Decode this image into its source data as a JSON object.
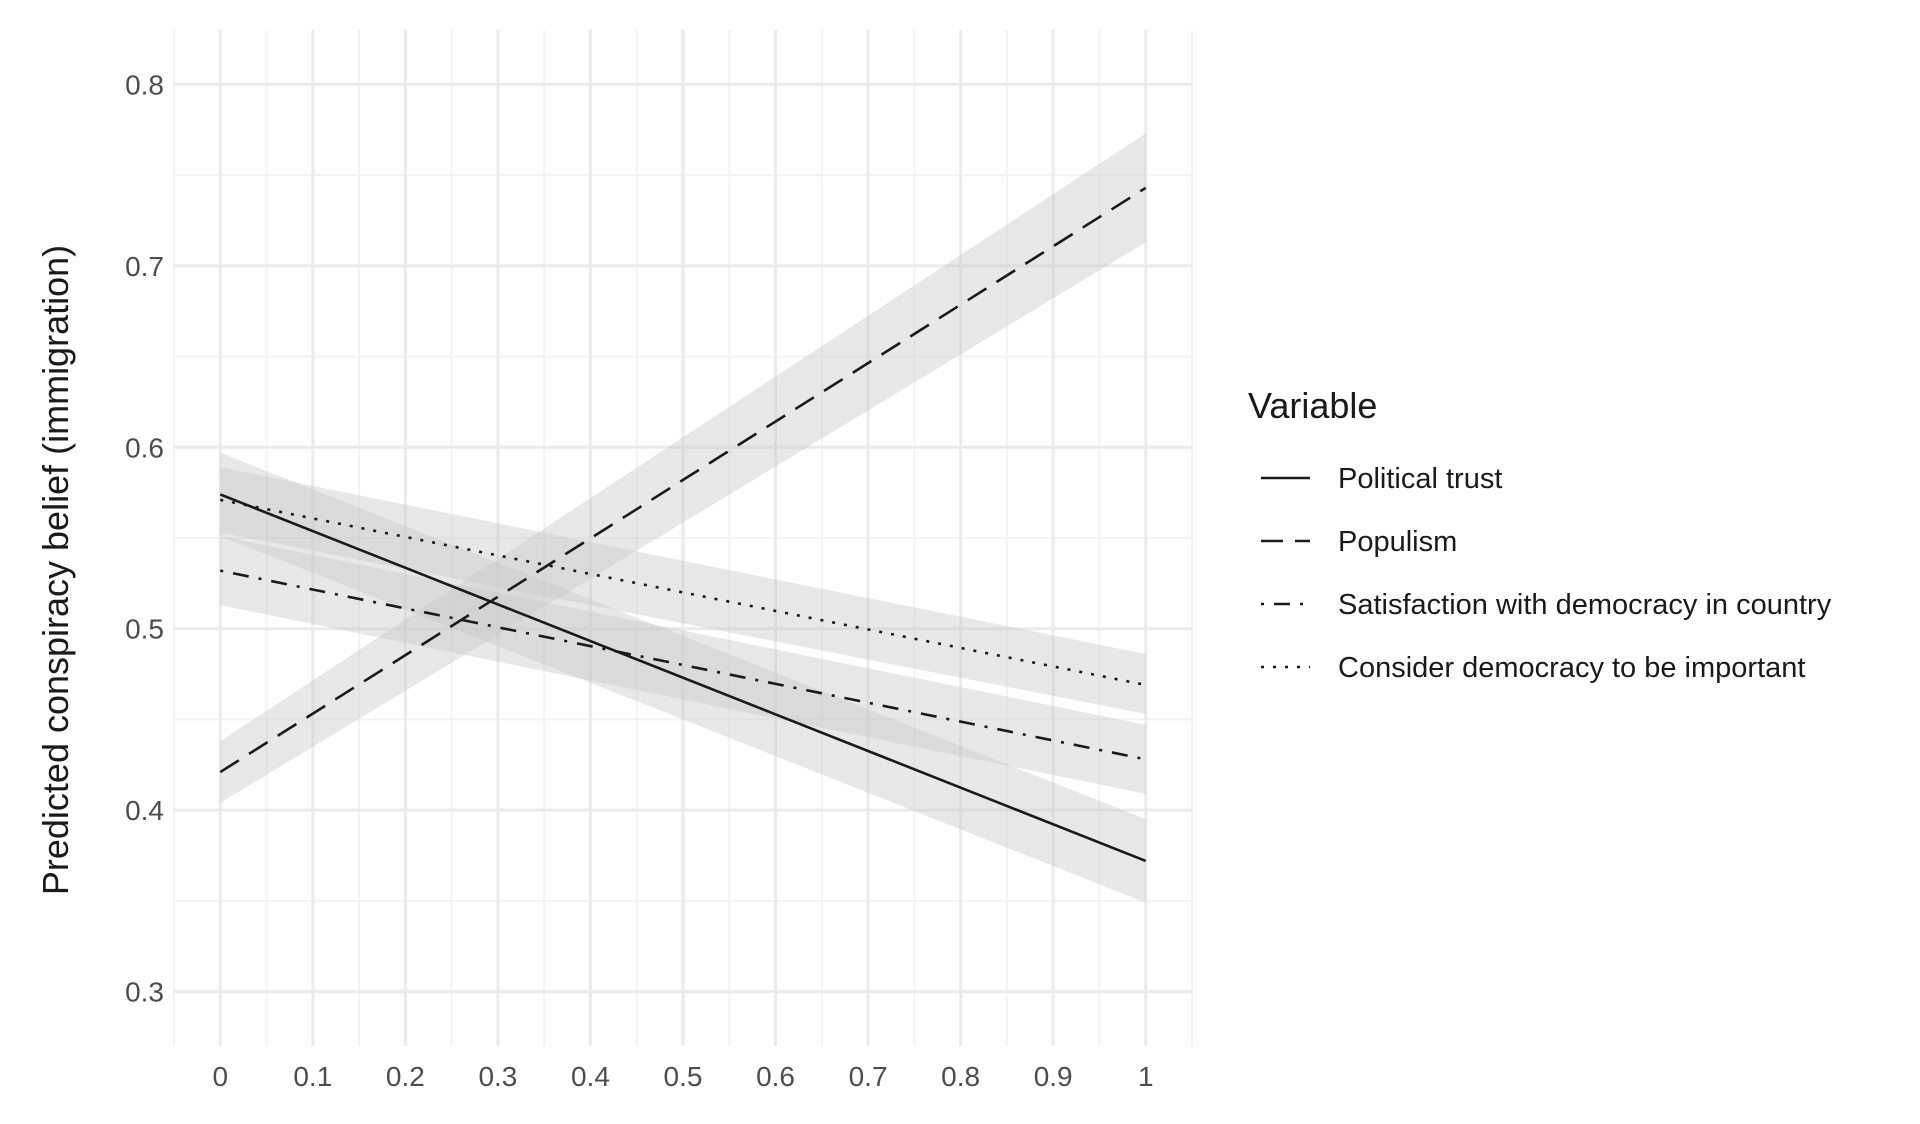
{
  "chart_data": {
    "type": "line",
    "title": "",
    "xlabel": "",
    "ylabel": "Predicted conspiracy belief (immigration)",
    "xlim": [
      -0.05,
      1.05
    ],
    "ylim": [
      0.27,
      0.83
    ],
    "x_ticks": [
      0,
      0.1,
      0.2,
      0.3,
      0.4,
      0.5,
      0.6,
      0.7,
      0.8,
      0.9,
      1
    ],
    "x_tick_labels": [
      "0",
      "0.1",
      "0.2",
      "0.3",
      "0.4",
      "0.5",
      "0.6",
      "0.7",
      "0.8",
      "0.9",
      "1"
    ],
    "y_ticks": [
      0.3,
      0.4,
      0.5,
      0.6,
      0.7,
      0.8
    ],
    "y_tick_labels": [
      "0.3",
      "0.4",
      "0.5",
      "0.6",
      "0.7",
      "0.8"
    ],
    "grid": true,
    "legend": {
      "title": "Variable",
      "position": "right"
    },
    "series": [
      {
        "name": "Political trust",
        "linetype": "solid",
        "x": [
          0,
          1
        ],
        "y": [
          0.574,
          0.372
        ],
        "lower": [
          0.551,
          0.349
        ],
        "upper": [
          0.597,
          0.395
        ]
      },
      {
        "name": "Populism",
        "linetype": "dashed",
        "x": [
          0,
          1
        ],
        "y": [
          0.421,
          0.743
        ],
        "lower": [
          0.404,
          0.713
        ],
        "upper": [
          0.438,
          0.773
        ]
      },
      {
        "name": "Satisfaction with democracy in country",
        "linetype": "dotdash",
        "x": [
          0,
          1
        ],
        "y": [
          0.532,
          0.428
        ],
        "lower": [
          0.513,
          0.409
        ],
        "upper": [
          0.551,
          0.447
        ]
      },
      {
        "name": "Consider democracy to be important",
        "linetype": "dotted",
        "x": [
          0,
          1
        ],
        "y": [
          0.571,
          0.469
        ],
        "lower": [
          0.553,
          0.453
        ],
        "upper": [
          0.589,
          0.486
        ]
      }
    ],
    "colors": {
      "line": "#1a1a1a",
      "ribbon": "#c8c8c8",
      "grid_major": "#ebebeb",
      "grid_minor": "#f3f3f3"
    }
  }
}
